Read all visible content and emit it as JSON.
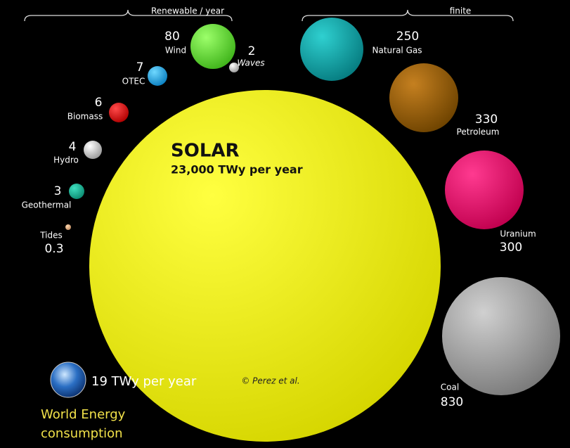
{
  "header": {
    "renewable": "Renewable / year",
    "finite": "finite"
  },
  "solar": {
    "title": "SOLAR",
    "subtitle": "23,000 TWy per year"
  },
  "renewables": [
    {
      "name": "Wind",
      "value": 80
    },
    {
      "name": "Waves",
      "value": 2
    },
    {
      "name": "OTEC",
      "value": 7
    },
    {
      "name": "Biomass",
      "value": 6
    },
    {
      "name": "Hydro",
      "value": 4
    },
    {
      "name": "Geothermal",
      "value": 3
    },
    {
      "name": "Tides",
      "value": 0.3
    }
  ],
  "finite": [
    {
      "name": "Natural Gas",
      "value": 250
    },
    {
      "name": "Petroleum",
      "value": 330
    },
    {
      "name": "Uranium",
      "value": 300
    },
    {
      "name": "Coal",
      "value": 830
    }
  ],
  "world": {
    "amount": "19 TWy per year",
    "label_line1": "World Energy",
    "label_line2": "consumption"
  },
  "credit": "© Perez et al."
}
